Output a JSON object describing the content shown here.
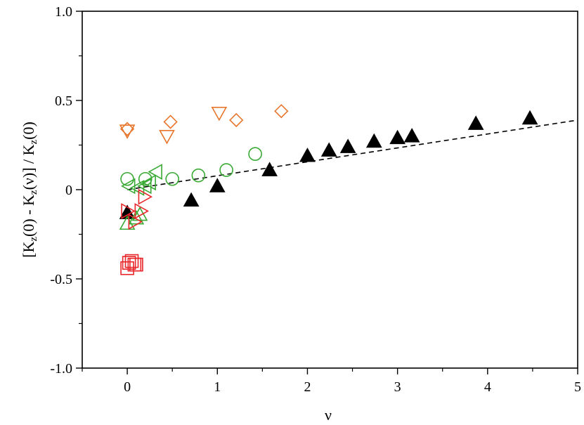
{
  "chart_data": {
    "type": "scatter",
    "xlabel": "ν",
    "ylabel_parts": [
      "[K",
      "z",
      "(0) - K",
      "z",
      "(ν)] / K",
      "z",
      "(0)"
    ],
    "xlim": [
      -0.5,
      5
    ],
    "ylim": [
      -1.0,
      1.0
    ],
    "x_ticks": [
      "0",
      "1",
      "2",
      "3",
      "4",
      "5"
    ],
    "x_tick_values": [
      0,
      1,
      2,
      3,
      4,
      5
    ],
    "y_ticks": [
      "-1.0",
      "-0.5",
      "0",
      "0.5",
      "1.0"
    ],
    "y_tick_values": [
      -1.0,
      -0.5,
      0,
      0.5,
      1.0
    ],
    "grid": false,
    "fit_line": {
      "style": "dashed",
      "x": [
        0,
        5
      ],
      "y": [
        0,
        0.39
      ]
    },
    "series": [
      {
        "marker": "filled-triangle-up",
        "color": "#000000",
        "x": [
          0,
          0.71,
          1.0,
          1.58,
          2.0,
          2.24,
          2.45,
          2.74,
          3.0,
          3.16,
          3.87,
          4.47
        ],
        "y": [
          -0.13,
          -0.06,
          0.02,
          0.11,
          0.19,
          0.22,
          0.24,
          0.27,
          0.29,
          0.3,
          0.37,
          0.4
        ]
      },
      {
        "marker": "open-diamond",
        "color": "#E8772E",
        "x": [
          0,
          0.48,
          1.21,
          1.71
        ],
        "y": [
          0.34,
          0.38,
          0.39,
          0.44
        ]
      },
      {
        "marker": "open-triangle-down",
        "color": "#E8772E",
        "x": [
          0,
          0.44,
          1.02
        ],
        "y": [
          0.33,
          0.3,
          0.43
        ]
      },
      {
        "marker": "open-circle",
        "color": "#3AAA35",
        "x": [
          0,
          0.2,
          0.5,
          0.79,
          1.1,
          1.42
        ],
        "y": [
          0.06,
          0.06,
          0.06,
          0.08,
          0.11,
          0.2
        ]
      },
      {
        "marker": "open-triangle-left",
        "color": "#3AAA35",
        "x": [
          0.02,
          0.12,
          0.2,
          0.25,
          0.32
        ],
        "y": [
          0.02,
          0.01,
          0.02,
          0.04,
          0.1
        ]
      },
      {
        "marker": "open-triangle-up",
        "color": "#3AAA35",
        "x": [
          0,
          0.1,
          0.14
        ],
        "y": [
          -0.19,
          -0.16,
          -0.14
        ]
      },
      {
        "marker": "open-triangle-right",
        "color": "#E8262A",
        "x": [
          0,
          0.08,
          0.15,
          0.19
        ],
        "y": [
          -0.12,
          -0.18,
          -0.12,
          -0.04
        ]
      },
      {
        "marker": "open-square",
        "color": "#E8262A",
        "x": [
          0,
          0.02,
          0.05,
          0.08,
          0.1
        ],
        "y": [
          -0.44,
          -0.41,
          -0.4,
          -0.42,
          -0.42
        ]
      }
    ]
  }
}
